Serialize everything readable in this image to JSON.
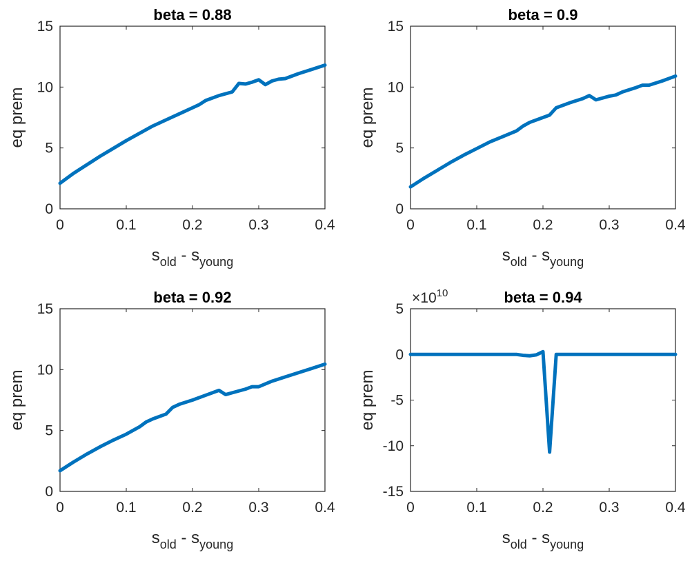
{
  "figure": {
    "background": "#ffffff",
    "line_color": "#0072BD"
  },
  "chart_data": [
    {
      "type": "line",
      "title": "beta = 0.88",
      "xlabel": {
        "main1": "s",
        "sub1": "old",
        "sep": " - ",
        "main2": "s",
        "sub2": "young"
      },
      "ylabel": "eq prem",
      "xlim": [
        0,
        0.4
      ],
      "ylim": [
        0,
        15
      ],
      "xticks": [
        0,
        0.1,
        0.2,
        0.3,
        0.4
      ],
      "xtick_labels": [
        "0",
        "0.1",
        "0.2",
        "0.3",
        "0.4"
      ],
      "yticks": [
        0,
        5,
        10,
        15
      ],
      "ytick_labels": [
        "0",
        "5",
        "10",
        "15"
      ],
      "exponent_label": "",
      "grid": false,
      "series": [
        {
          "color": "#0072BD",
          "x": [
            0,
            0.02,
            0.04,
            0.06,
            0.08,
            0.1,
            0.12,
            0.14,
            0.16,
            0.18,
            0.2,
            0.21,
            0.22,
            0.24,
            0.26,
            0.27,
            0.28,
            0.29,
            0.3,
            0.31,
            0.32,
            0.33,
            0.34,
            0.36,
            0.38,
            0.4
          ],
          "y": [
            2.1,
            2.9,
            3.6,
            4.3,
            4.95,
            5.6,
            6.2,
            6.8,
            7.3,
            7.8,
            8.3,
            8.55,
            8.9,
            9.3,
            9.6,
            10.3,
            10.25,
            10.4,
            10.6,
            10.2,
            10.5,
            10.65,
            10.7,
            11.1,
            11.45,
            11.8
          ]
        }
      ]
    },
    {
      "type": "line",
      "title": "beta = 0.9",
      "xlabel": {
        "main1": "s",
        "sub1": "old",
        "sep": " - ",
        "main2": "s",
        "sub2": "young"
      },
      "ylabel": "eq prem",
      "xlim": [
        0,
        0.4
      ],
      "ylim": [
        0,
        15
      ],
      "xticks": [
        0,
        0.1,
        0.2,
        0.3,
        0.4
      ],
      "xtick_labels": [
        "0",
        "0.1",
        "0.2",
        "0.3",
        "0.4"
      ],
      "yticks": [
        0,
        5,
        10,
        15
      ],
      "ytick_labels": [
        "0",
        "5",
        "10",
        "15"
      ],
      "exponent_label": "",
      "grid": false,
      "series": [
        {
          "color": "#0072BD",
          "x": [
            0,
            0.02,
            0.04,
            0.06,
            0.08,
            0.1,
            0.12,
            0.14,
            0.16,
            0.17,
            0.18,
            0.2,
            0.21,
            0.22,
            0.24,
            0.26,
            0.27,
            0.28,
            0.3,
            0.31,
            0.32,
            0.34,
            0.35,
            0.36,
            0.38,
            0.4
          ],
          "y": [
            1.8,
            2.5,
            3.15,
            3.8,
            4.4,
            4.95,
            5.5,
            5.95,
            6.4,
            6.8,
            7.1,
            7.5,
            7.7,
            8.3,
            8.7,
            9.05,
            9.3,
            8.95,
            9.25,
            9.35,
            9.6,
            9.95,
            10.15,
            10.15,
            10.5,
            10.9
          ]
        }
      ]
    },
    {
      "type": "line",
      "title": "beta = 0.92",
      "xlabel": {
        "main1": "s",
        "sub1": "old",
        "sep": " - ",
        "main2": "s",
        "sub2": "young"
      },
      "ylabel": "eq prem",
      "xlim": [
        0,
        0.4
      ],
      "ylim": [
        0,
        15
      ],
      "xticks": [
        0,
        0.1,
        0.2,
        0.3,
        0.4
      ],
      "xtick_labels": [
        "0",
        "0.1",
        "0.2",
        "0.3",
        "0.4"
      ],
      "yticks": [
        0,
        5,
        10,
        15
      ],
      "ytick_labels": [
        "0",
        "5",
        "10",
        "15"
      ],
      "exponent_label": "",
      "grid": false,
      "series": [
        {
          "color": "#0072BD",
          "x": [
            0,
            0.02,
            0.04,
            0.06,
            0.08,
            0.1,
            0.12,
            0.13,
            0.14,
            0.16,
            0.17,
            0.18,
            0.2,
            0.22,
            0.24,
            0.25,
            0.26,
            0.28,
            0.29,
            0.3,
            0.32,
            0.34,
            0.36,
            0.38,
            0.4
          ],
          "y": [
            1.7,
            2.4,
            3.05,
            3.65,
            4.2,
            4.7,
            5.3,
            5.7,
            5.95,
            6.35,
            6.9,
            7.15,
            7.5,
            7.9,
            8.3,
            7.95,
            8.1,
            8.4,
            8.6,
            8.6,
            9.05,
            9.4,
            9.75,
            10.1,
            10.45
          ]
        }
      ]
    },
    {
      "type": "line",
      "title": "beta = 0.94",
      "xlabel": {
        "main1": "s",
        "sub1": "old",
        "sep": " - ",
        "main2": "s",
        "sub2": "young"
      },
      "ylabel": "eq prem",
      "xlim": [
        0,
        0.4
      ],
      "ylim": [
        -15,
        5
      ],
      "xticks": [
        0,
        0.1,
        0.2,
        0.3,
        0.4
      ],
      "xtick_labels": [
        "0",
        "0.1",
        "0.2",
        "0.3",
        "0.4"
      ],
      "yticks": [
        -15,
        -10,
        -5,
        0,
        5
      ],
      "ytick_labels": [
        "-15",
        "-10",
        "-5",
        "0",
        "5"
      ],
      "exponent_label": {
        "base": "×10",
        "exp": "10"
      },
      "grid": false,
      "series": [
        {
          "color": "#0072BD",
          "x": [
            0,
            0.1,
            0.16,
            0.17,
            0.18,
            0.19,
            0.2,
            0.21,
            0.22,
            0.23,
            0.3,
            0.4
          ],
          "y": [
            0,
            0,
            0,
            -0.1,
            -0.15,
            -0.05,
            0.3,
            -10.7,
            0,
            0,
            0,
            0
          ]
        }
      ]
    }
  ]
}
